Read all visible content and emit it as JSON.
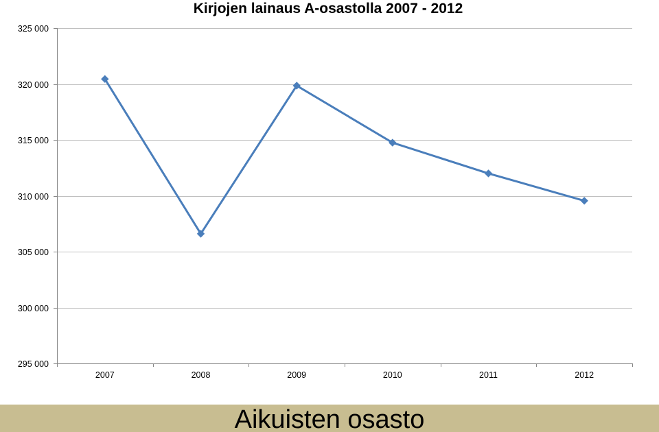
{
  "chart_data": {
    "type": "line",
    "title": "Kirjojen lainaus A-osastolla 2007 - 2012",
    "xlabel": "",
    "ylabel": "",
    "categories": [
      "2007",
      "2008",
      "2009",
      "2010",
      "2011",
      "2012"
    ],
    "series": [
      {
        "values": [
          320450,
          306600,
          319850,
          314750,
          312000,
          309550
        ],
        "color": "#4a7ebb",
        "marker": "diamond"
      }
    ],
    "ylim": [
      295000,
      325000
    ],
    "yticks": [
      295000,
      300000,
      305000,
      310000,
      315000,
      320000,
      325000
    ],
    "ytick_labels": [
      "295 000",
      "300 000",
      "305 000",
      "310 000",
      "315 000",
      "320 000",
      "325 000"
    ],
    "grid": true,
    "legend": "none"
  },
  "footer": {
    "label": "Aikuisten osasto",
    "background": "#c8bd91"
  }
}
